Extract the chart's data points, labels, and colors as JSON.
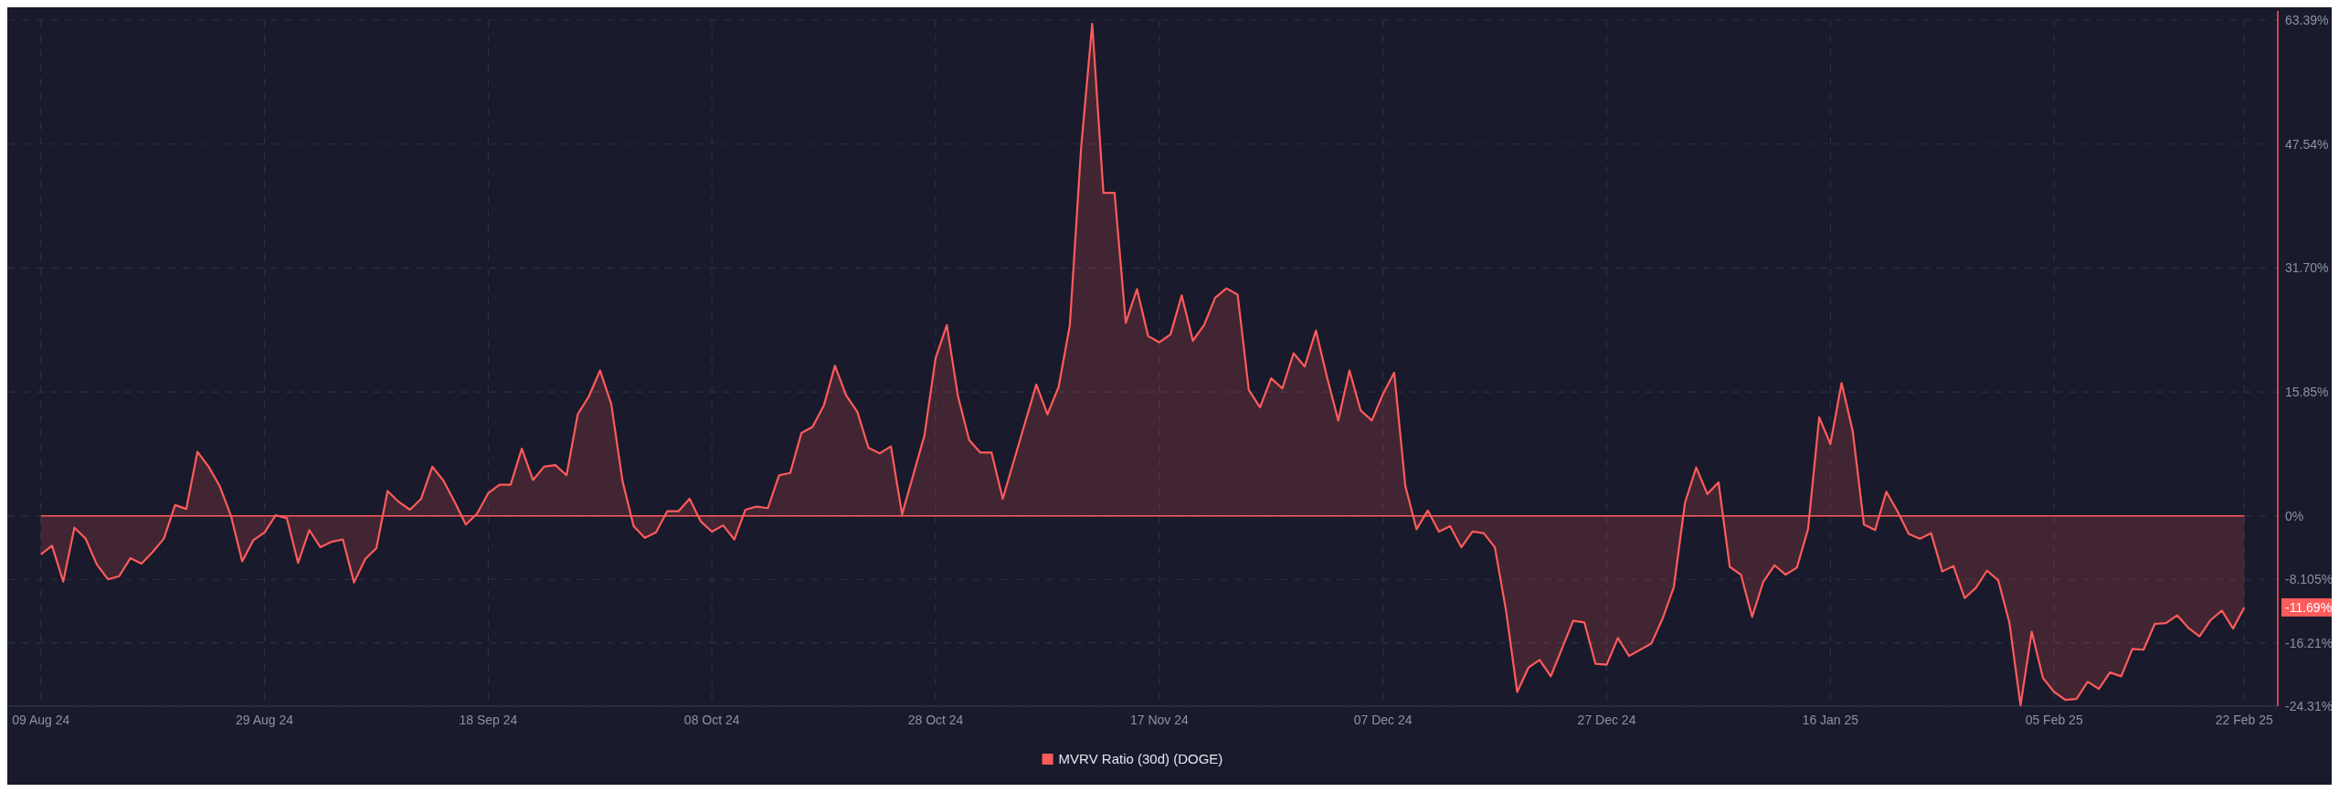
{
  "chart_data": {
    "type": "area",
    "x": [
      "2024-08-09",
      "2024-08-10",
      "2024-08-11",
      "2024-08-12",
      "2024-08-13",
      "2024-08-14",
      "2024-08-15",
      "2024-08-16",
      "2024-08-17",
      "2024-08-18",
      "2024-08-19",
      "2024-08-20",
      "2024-08-21",
      "2024-08-22",
      "2024-08-23",
      "2024-08-24",
      "2024-08-25",
      "2024-08-26",
      "2024-08-27",
      "2024-08-28",
      "2024-08-29",
      "2024-08-30",
      "2024-08-31",
      "2024-09-01",
      "2024-09-02",
      "2024-09-03",
      "2024-09-04",
      "2024-09-05",
      "2024-09-06",
      "2024-09-07",
      "2024-09-08",
      "2024-09-09",
      "2024-09-10",
      "2024-09-11",
      "2024-09-12",
      "2024-09-13",
      "2024-09-14",
      "2024-09-15",
      "2024-09-16",
      "2024-09-17",
      "2024-09-18",
      "2024-09-19",
      "2024-09-20",
      "2024-09-21",
      "2024-09-22",
      "2024-09-23",
      "2024-09-24",
      "2024-09-25",
      "2024-09-26",
      "2024-09-27",
      "2024-09-28",
      "2024-09-29",
      "2024-09-30",
      "2024-10-01",
      "2024-10-02",
      "2024-10-03",
      "2024-10-04",
      "2024-10-05",
      "2024-10-06",
      "2024-10-07",
      "2024-10-08",
      "2024-10-09",
      "2024-10-10",
      "2024-10-11",
      "2024-10-12",
      "2024-10-13",
      "2024-10-14",
      "2024-10-15",
      "2024-10-16",
      "2024-10-17",
      "2024-10-18",
      "2024-10-19",
      "2024-10-20",
      "2024-10-21",
      "2024-10-22",
      "2024-10-23",
      "2024-10-24",
      "2024-10-25",
      "2024-10-27",
      "2024-10-28",
      "2024-10-29",
      "2024-10-30",
      "2024-10-31",
      "2024-11-01",
      "2024-11-02",
      "2024-11-03",
      "2024-11-06",
      "2024-11-07",
      "2024-11-08",
      "2024-11-09",
      "2024-11-10",
      "2024-11-11",
      "2024-11-12",
      "2024-11-13",
      "2024-11-14",
      "2024-11-15",
      "2024-11-16",
      "2024-11-17",
      "2024-11-18",
      "2024-11-19",
      "2024-11-20",
      "2024-11-21",
      "2024-11-22",
      "2024-11-23",
      "2024-11-24",
      "2024-11-25",
      "2024-11-26",
      "2024-11-27",
      "2024-11-28",
      "2024-11-29",
      "2024-11-30",
      "2024-12-01",
      "2024-12-02",
      "2024-12-03",
      "2024-12-04",
      "2024-12-05",
      "2024-12-06",
      "2024-12-07",
      "2024-12-08",
      "2024-12-09",
      "2024-12-10",
      "2024-12-11",
      "2024-12-12",
      "2024-12-13",
      "2024-12-14",
      "2024-12-15",
      "2024-12-16",
      "2024-12-17",
      "2024-12-18",
      "2024-12-19",
      "2024-12-20",
      "2024-12-21",
      "2024-12-22",
      "2024-12-24",
      "2024-12-25",
      "2024-12-26",
      "2024-12-27",
      "2024-12-28",
      "2024-12-29",
      "2024-12-30",
      "2024-12-31",
      "2025-01-01",
      "2025-01-02",
      "2025-01-03",
      "2025-01-04",
      "2025-01-05",
      "2025-01-06",
      "2025-01-07",
      "2025-01-08",
      "2025-01-09",
      "2025-01-10",
      "2025-01-11",
      "2025-01-12",
      "2025-01-13",
      "2025-01-14",
      "2025-01-15",
      "2025-01-16",
      "2025-01-17",
      "2025-01-18",
      "2025-01-19",
      "2025-01-20",
      "2025-01-21",
      "2025-01-22",
      "2025-01-23",
      "2025-01-24",
      "2025-01-25",
      "2025-01-26",
      "2025-01-27",
      "2025-01-28",
      "2025-01-29",
      "2025-01-30",
      "2025-01-31",
      "2025-02-01",
      "2025-02-02",
      "2025-02-03",
      "2025-02-04",
      "2025-02-05",
      "2025-02-06",
      "2025-02-07",
      "2025-02-08",
      "2025-02-09",
      "2025-02-10",
      "2025-02-11",
      "2025-02-12",
      "2025-02-13",
      "2025-02-14",
      "2025-02-15",
      "2025-02-16",
      "2025-02-17",
      "2025-02-18",
      "2025-02-19",
      "2025-02-20",
      "2025-02-21",
      "2025-02-22"
    ],
    "series": [
      {
        "name": "MVRV Ratio (30d) (DOGE)",
        "color": "#ff5b5b",
        "values": [
          -4.9,
          -3.8,
          -8.4,
          -1.5,
          -2.9,
          -6.2,
          -8.1,
          -7.7,
          -5.4,
          -6.1,
          -4.6,
          -2.9,
          1.4,
          0.9,
          8.2,
          6.3,
          3.8,
          0.0,
          -5.8,
          -3.1,
          -2.1,
          0.1,
          -0.3,
          -6.0,
          -1.8,
          -4.0,
          -3.3,
          -3.0,
          -8.5,
          -5.5,
          -4.1,
          3.2,
          1.8,
          0.8,
          2.2,
          6.3,
          4.5,
          1.8,
          -1.1,
          0.3,
          2.9,
          4.0,
          4.0,
          8.6,
          4.6,
          6.3,
          6.5,
          5.2,
          13.0,
          15.3,
          18.6,
          14.3,
          4.5,
          -1.3,
          -2.8,
          -2.1,
          0.6,
          0.6,
          2.2,
          -0.7,
          -2.0,
          -1.2,
          -3.0,
          0.8,
          1.2,
          1.0,
          5.2,
          5.5,
          10.6,
          11.4,
          14.1,
          19.2,
          15.4,
          13.3,
          8.7,
          8.0,
          8.9,
          0.2,
          10.3,
          20.2,
          24.4,
          15.3,
          9.7,
          8.1,
          8.1,
          2.2,
          16.8,
          13.0,
          16.5,
          24.4,
          46.9,
          62.9,
          41.3,
          41.3,
          24.7,
          29.0,
          23.0,
          22.2,
          23.2,
          28.2,
          22.4,
          24.4,
          27.9,
          29.1,
          28.3,
          16.1,
          13.9,
          17.6,
          16.3,
          20.8,
          19.1,
          23.7,
          17.7,
          12.2,
          18.6,
          13.5,
          12.2,
          15.6,
          18.3,
          3.8,
          -1.7,
          0.7,
          -2.0,
          -1.3,
          -4.0,
          -2.0,
          -2.2,
          -4.0,
          -12.1,
          -22.5,
          -19.4,
          -18.4,
          -20.5,
          -13.4,
          -13.6,
          -18.9,
          -19.0,
          -15.6,
          -17.9,
          -17.1,
          -16.3,
          -13.1,
          -9.1,
          1.7,
          6.2,
          2.8,
          4.3,
          -6.5,
          -7.5,
          -12.9,
          -8.4,
          -6.3,
          -7.5,
          -6.6,
          -1.7,
          12.6,
          9.2,
          17.0,
          10.8,
          -1.1,
          -1.8,
          3.1,
          0.6,
          -2.3,
          -2.9,
          -2.2,
          -7.1,
          -6.4,
          -10.5,
          -9.2,
          -7.0,
          -8.2,
          -13.6,
          -24.2,
          -14.8,
          -20.7,
          -22.5,
          -23.5,
          -23.4,
          -21.2,
          -22.1,
          -20.0,
          -20.5,
          -17.0,
          -17.1,
          -13.8,
          -13.7,
          -12.7,
          -14.3,
          -15.4,
          -13.3,
          -12.1,
          -14.4,
          -11.69
        ]
      }
    ],
    "xlim": [
      "2024-08-06",
      "2025-02-25"
    ],
    "xticks": [
      {
        "value": "2024-08-09",
        "label": "09 Aug 24"
      },
      {
        "value": "2024-08-29",
        "label": "29 Aug 24"
      },
      {
        "value": "2024-09-18",
        "label": "18 Sep 24"
      },
      {
        "value": "2024-10-08",
        "label": "08 Oct 24"
      },
      {
        "value": "2024-10-28",
        "label": "28 Oct 24"
      },
      {
        "value": "2024-11-17",
        "label": "17 Nov 24"
      },
      {
        "value": "2024-12-07",
        "label": "07 Dec 24"
      },
      {
        "value": "2024-12-27",
        "label": "27 Dec 24"
      },
      {
        "value": "2025-01-16",
        "label": "16 Jan 25"
      },
      {
        "value": "2025-02-05",
        "label": "05 Feb 25"
      },
      {
        "value": "2025-02-22",
        "label": "22 Feb 25"
      }
    ],
    "ylim": [
      -24.31,
      63.39
    ],
    "yticks": [
      {
        "value": 63.39,
        "label": "63.39%"
      },
      {
        "value": 47.54,
        "label": "47.54%"
      },
      {
        "value": 31.7,
        "label": "31.70%"
      },
      {
        "value": 15.85,
        "label": "15.85%"
      },
      {
        "value": 0,
        "label": "0%"
      },
      {
        "value": -8.105,
        "label": "-8.105%"
      },
      {
        "value": -16.21,
        "label": "-16.21%"
      },
      {
        "value": -24.31,
        "label": "-24.31%"
      }
    ],
    "ref_lines": [
      {
        "axis": "y",
        "value": 0,
        "color": "#ff5b5b"
      }
    ],
    "annotations": [
      "-11.69%"
    ],
    "grid": true,
    "legend": "bottom"
  }
}
